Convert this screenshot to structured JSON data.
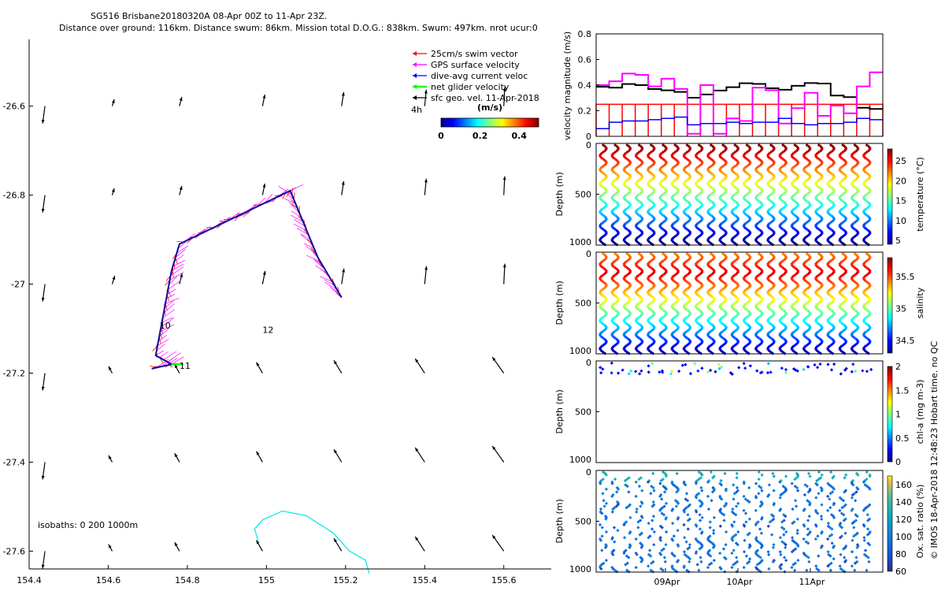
{
  "header": {
    "title": "SG516 Brisbane20180320A 08-Apr 00Z to 11-Apr 23Z.",
    "subtitle": "Distance over ground: 116km. Distance swum: 86km. Mission total D.O.G.: 838km. Swum: 497km. nrot ucur:0"
  },
  "side_text": "© IMOS 18-Apr-2018 12:48:23 Hobart time. no QC",
  "chart_data": [
    {
      "type": "scatter",
      "panel": "map",
      "xlim": [
        154.4,
        155.72
      ],
      "ylim": [
        -27.64,
        -26.45
      ],
      "x_ticks": [
        "154.4",
        "154.6",
        "154.8",
        "155",
        "155.2",
        "155.4",
        "155.6"
      ],
      "y_ticks": [
        "-26.6",
        "-26.8",
        "-27",
        "-27.2",
        "-27.4",
        "-27.6"
      ],
      "legend": {
        "placement": "top-right",
        "items": [
          {
            "label": "25cm/s swim vector",
            "color": "#ff0000"
          },
          {
            "label": "GPS surface velocity",
            "color": "#ff00ff"
          },
          {
            "label": "dive-avg current veloc",
            "color": "#0000ff"
          },
          {
            "label": "net glider velocity",
            "color": "#00ff00"
          },
          {
            "label": "sfc geo. vel. 11-Apr-2018",
            "color": "#000000"
          }
        ],
        "note": "4h"
      },
      "colorbar": {
        "label": "(m/s)",
        "ticks": [
          "0",
          "0.2",
          "0.4"
        ],
        "range": [
          0,
          0.5
        ]
      },
      "day_labels": [
        {
          "text": "10",
          "x": 154.73,
          "y": -27.1
        },
        {
          "text": "11",
          "x": 154.78,
          "y": -27.19
        },
        {
          "text": "12",
          "x": 154.99,
          "y": -27.11
        }
      ],
      "track": [
        {
          "x": 155.19,
          "y": -27.03
        },
        {
          "x": 155.13,
          "y": -26.94
        },
        {
          "x": 155.06,
          "y": -26.79
        },
        {
          "x": 154.78,
          "y": -26.91
        },
        {
          "x": 154.76,
          "y": -26.97
        },
        {
          "x": 154.72,
          "y": -27.16
        },
        {
          "x": 154.76,
          "y": -27.18
        },
        {
          "x": 154.71,
          "y": -27.19
        }
      ],
      "isobaths_label": "isobaths: 0   200  1000m",
      "isobath_1000m": [
        {
          "x": 154.98,
          "y": -27.58
        },
        {
          "x": 154.97,
          "y": -27.55
        },
        {
          "x": 154.99,
          "y": -27.53
        },
        {
          "x": 155.04,
          "y": -27.51
        },
        {
          "x": 155.1,
          "y": -27.52
        },
        {
          "x": 155.17,
          "y": -27.56
        },
        {
          "x": 155.21,
          "y": -27.6
        },
        {
          "x": 155.25,
          "y": -27.62
        },
        {
          "x": 155.26,
          "y": -27.65
        }
      ]
    },
    {
      "type": "line",
      "panel": "velocity",
      "ylabel": "velocity magnitude (m/s)",
      "ylim": [
        0,
        0.8
      ],
      "y_ticks": [
        "0",
        "0.2",
        "0.4",
        "0.6",
        "0.8"
      ],
      "series": [
        {
          "color": "#ff0000",
          "values": [
            0.25,
            0.25,
            0.25,
            0.25,
            0.25,
            0.25,
            0.25,
            0.25,
            0.25,
            0.25,
            0.25,
            0.25,
            0.25,
            0.25,
            0.25,
            0.25,
            0.25,
            0.25,
            0.25,
            0.25,
            0.25,
            0.25
          ]
        },
        {
          "color": "#000000",
          "values": [
            0.38,
            0.37,
            0.41,
            0.4,
            0.36,
            0.35,
            0.35,
            0.31,
            0.33,
            0.35,
            0.38,
            0.41,
            0.4,
            0.37,
            0.37,
            0.4,
            0.41,
            0.42,
            0.31,
            0.3,
            0.22,
            0.21
          ]
        },
        {
          "color": "#ff00ff",
          "values": [
            0.4,
            0.43,
            0.49,
            0.48,
            0.39,
            0.45,
            0.37,
            0.02,
            0.4,
            0.02,
            0.14,
            0.12,
            0.38,
            0.36,
            0.1,
            0.22,
            0.34,
            0.16,
            0.24,
            0.18,
            0.39,
            0.5
          ]
        },
        {
          "color": "#0000ff",
          "values": [
            0.06,
            0.11,
            0.12,
            0.12,
            0.13,
            0.14,
            0.15,
            0.09,
            0.1,
            0.1,
            0.11,
            0.1,
            0.11,
            0.11,
            0.14,
            0.1,
            0.09,
            0.1,
            0.1,
            0.11,
            0.14,
            0.13
          ]
        }
      ]
    },
    {
      "type": "scatter",
      "panel": "temperature",
      "ylabel": "Depth (m)",
      "colorbar_label": "temperature (°C)",
      "ylim": [
        1000,
        0
      ],
      "y_ticks": [
        "0",
        "500",
        "1000"
      ],
      "colorbar_ticks": [
        "5",
        "10",
        "15",
        "20",
        "25"
      ],
      "crange": [
        4,
        28
      ]
    },
    {
      "type": "scatter",
      "panel": "salinity",
      "ylabel": "Depth (m)",
      "colorbar_label": "salinity",
      "ylim": [
        1000,
        0
      ],
      "y_ticks": [
        "0",
        "500",
        "1000"
      ],
      "colorbar_ticks": [
        "34.5",
        "35",
        "35.5"
      ],
      "crange": [
        34.3,
        35.8
      ]
    },
    {
      "type": "scatter",
      "panel": "chla",
      "ylabel": "Depth (m)",
      "colorbar_label": "chl-a (mg m-3)",
      "ylim": [
        1000,
        0
      ],
      "y_ticks": [
        "0",
        "500",
        "1000"
      ],
      "colorbar_ticks": [
        "0",
        "0.5",
        "1",
        "1.5",
        "2"
      ],
      "crange": [
        0,
        2
      ]
    },
    {
      "type": "scatter",
      "panel": "oxygen",
      "ylabel": "Depth (m)",
      "colorbar_label": "Ox. sat. ratio (%)",
      "ylim": [
        1000,
        0
      ],
      "y_ticks": [
        "0",
        "500",
        "1000"
      ],
      "colorbar_ticks": [
        "60",
        "80",
        "100",
        "120",
        "140",
        "160"
      ],
      "crange": [
        60,
        170
      ],
      "x_ticks": [
        "09Apr",
        "10Apr",
        "11Apr"
      ]
    }
  ]
}
